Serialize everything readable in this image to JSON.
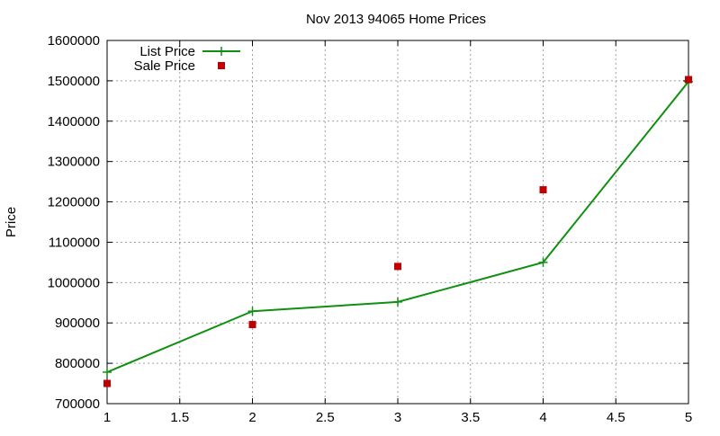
{
  "chart_data": {
    "type": "line",
    "title": "Nov 2013 94065 Home Prices",
    "xlabel": "",
    "ylabel": "Price",
    "xlim": [
      1,
      5
    ],
    "ylim": [
      700000,
      1600000
    ],
    "x_ticks": [
      1,
      1.5,
      2,
      2.5,
      3,
      3.5,
      4,
      4.5,
      5
    ],
    "y_ticks": [
      700000,
      800000,
      900000,
      1000000,
      1100000,
      1200000,
      1300000,
      1400000,
      1500000,
      1600000
    ],
    "grid": true,
    "legend_position": "top-left",
    "series": [
      {
        "name": "List Price",
        "style": "line-with-plus-markers",
        "color": "#109010",
        "points": [
          {
            "x": 1,
            "y": 778000
          },
          {
            "x": 2,
            "y": 929000
          },
          {
            "x": 3,
            "y": 952000
          },
          {
            "x": 4,
            "y": 1050000
          },
          {
            "x": 5,
            "y": 1498000
          }
        ]
      },
      {
        "name": "Sale Price",
        "style": "square-markers",
        "color": "#c00000",
        "points": [
          {
            "x": 1,
            "y": 750000
          },
          {
            "x": 2,
            "y": 896000
          },
          {
            "x": 3,
            "y": 1040000
          },
          {
            "x": 4,
            "y": 1230000
          },
          {
            "x": 5,
            "y": 1503000
          }
        ]
      }
    ]
  }
}
